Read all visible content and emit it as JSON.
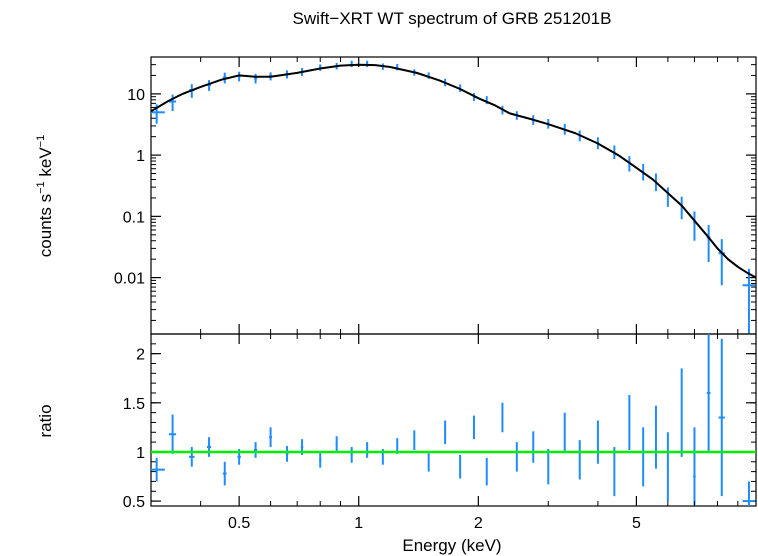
{
  "chart_data": [
    {
      "panel": "spectrum",
      "type": "scatter",
      "title": "Swift−XRT WT spectrum of GRB 251201B",
      "ylabel_parts": [
        "counts s",
        "−1",
        " keV",
        "−1"
      ],
      "xscale": "log",
      "yscale": "log",
      "xlim": [
        0.3,
        10
      ],
      "ylim": [
        0.0012,
        40
      ],
      "ytick_values": [
        10,
        1,
        0.1,
        0.01
      ],
      "ytick_labels": [
        "10",
        "1",
        "0.1",
        "0.01"
      ],
      "data_color": "#1e8cff",
      "model_color": "#000000",
      "model": {
        "x": [
          0.3,
          0.33,
          0.36,
          0.4,
          0.45,
          0.5,
          0.55,
          0.6,
          0.7,
          0.8,
          0.9,
          1.0,
          1.1,
          1.2,
          1.4,
          1.6,
          1.8,
          2.0,
          2.2,
          2.4,
          2.7,
          3.0,
          3.5,
          4.0,
          4.5,
          5.0,
          5.5,
          6.0,
          6.5,
          7.0,
          7.5,
          8.0,
          8.5,
          9.0,
          9.5,
          10.0
        ],
        "y": [
          5.2,
          7.5,
          10.0,
          13.0,
          17.0,
          20.0,
          19.0,
          19.0,
          22.0,
          26.0,
          29.0,
          30.0,
          29.5,
          27.5,
          22.0,
          16.5,
          12.0,
          8.5,
          6.5,
          4.8,
          3.9,
          3.2,
          2.3,
          1.55,
          1.0,
          0.62,
          0.4,
          0.24,
          0.15,
          0.085,
          0.05,
          0.03,
          0.02,
          0.015,
          0.012,
          0.01
        ]
      },
      "data_points": [
        {
          "x": 0.31,
          "y": 5.0,
          "xerr": 0.015,
          "yerr_frac": 0.35
        },
        {
          "x": 0.34,
          "y": 7.5,
          "xerr": 0.007,
          "yerr_frac": 0.3
        },
        {
          "x": 0.38,
          "y": 11.5,
          "xerr": 0.006,
          "yerr_frac": 0.25
        },
        {
          "x": 0.42,
          "y": 14.0,
          "xerr": 0.005,
          "yerr_frac": 0.2
        },
        {
          "x": 0.46,
          "y": 18.5,
          "xerr": 0.005,
          "yerr_frac": 0.2
        },
        {
          "x": 0.5,
          "y": 19.5,
          "xerr": 0.005,
          "yerr_frac": 0.18
        },
        {
          "x": 0.55,
          "y": 18.0,
          "xerr": 0.005,
          "yerr_frac": 0.18
        },
        {
          "x": 0.6,
          "y": 19.5,
          "xerr": 0.005,
          "yerr_frac": 0.15
        },
        {
          "x": 0.66,
          "y": 21.0,
          "xerr": 0.005,
          "yerr_frac": 0.15
        },
        {
          "x": 0.72,
          "y": 23.0,
          "xerr": 0.005,
          "yerr_frac": 0.15
        },
        {
          "x": 0.8,
          "y": 27.0,
          "xerr": 0.005,
          "yerr_frac": 0.12
        },
        {
          "x": 0.88,
          "y": 28.5,
          "xerr": 0.005,
          "yerr_frac": 0.12
        },
        {
          "x": 0.96,
          "y": 31.0,
          "xerr": 0.005,
          "yerr_frac": 0.12
        },
        {
          "x": 1.05,
          "y": 31.0,
          "xerr": 0.005,
          "yerr_frac": 0.12
        },
        {
          "x": 1.15,
          "y": 28.0,
          "xerr": 0.005,
          "yerr_frac": 0.12
        },
        {
          "x": 1.25,
          "y": 27.5,
          "xerr": 0.005,
          "yerr_frac": 0.12
        },
        {
          "x": 1.38,
          "y": 22.5,
          "xerr": 0.006,
          "yerr_frac": 0.12
        },
        {
          "x": 1.5,
          "y": 20.0,
          "xerr": 0.006,
          "yerr_frac": 0.12
        },
        {
          "x": 1.65,
          "y": 15.5,
          "xerr": 0.007,
          "yerr_frac": 0.14
        },
        {
          "x": 1.8,
          "y": 12.5,
          "xerr": 0.008,
          "yerr_frac": 0.14
        },
        {
          "x": 1.95,
          "y": 9.0,
          "xerr": 0.008,
          "yerr_frac": 0.15
        },
        {
          "x": 2.1,
          "y": 8.0,
          "xerr": 0.008,
          "yerr_frac": 0.15
        },
        {
          "x": 2.3,
          "y": 5.5,
          "xerr": 0.009,
          "yerr_frac": 0.16
        },
        {
          "x": 2.5,
          "y": 4.5,
          "xerr": 0.01,
          "yerr_frac": 0.16
        },
        {
          "x": 2.75,
          "y": 3.8,
          "xerr": 0.011,
          "yerr_frac": 0.18
        },
        {
          "x": 3.0,
          "y": 3.3,
          "xerr": 0.012,
          "yerr_frac": 0.18
        },
        {
          "x": 3.3,
          "y": 2.7,
          "xerr": 0.013,
          "yerr_frac": 0.2
        },
        {
          "x": 3.6,
          "y": 2.1,
          "xerr": 0.014,
          "yerr_frac": 0.2
        },
        {
          "x": 4.0,
          "y": 1.6,
          "xerr": 0.016,
          "yerr_frac": 0.22
        },
        {
          "x": 4.4,
          "y": 1.15,
          "xerr": 0.017,
          "yerr_frac": 0.25
        },
        {
          "x": 4.8,
          "y": 0.75,
          "xerr": 0.019,
          "yerr_frac": 0.28
        },
        {
          "x": 5.2,
          "y": 0.55,
          "xerr": 0.02,
          "yerr_frac": 0.3
        },
        {
          "x": 5.6,
          "y": 0.38,
          "xerr": 0.022,
          "yerr_frac": 0.32
        },
        {
          "x": 6.0,
          "y": 0.22,
          "xerr": 0.024,
          "yerr_frac": 0.35
        },
        {
          "x": 6.5,
          "y": 0.15,
          "xerr": 0.026,
          "yerr_frac": 0.4
        },
        {
          "x": 7.0,
          "y": 0.08,
          "xerr": 0.05,
          "yerr_frac": 0.5
        },
        {
          "x": 7.6,
          "y": 0.045,
          "xerr": 0.08,
          "yerr_frac": 0.6
        },
        {
          "x": 8.2,
          "y": 0.025,
          "xerr": 0.15,
          "yerr_frac": 0.7
        },
        {
          "x": 9.6,
          "y": 0.0075,
          "xerr": 0.35,
          "yerr_frac": 0.85
        }
      ]
    },
    {
      "panel": "ratio",
      "type": "scatter",
      "ylabel": "ratio",
      "xlabel": "Energy (keV)",
      "xscale": "log",
      "xlim": [
        0.3,
        10
      ],
      "ylim": [
        0.45,
        2.2
      ],
      "xtick_values": [
        0.5,
        1,
        2,
        5
      ],
      "xtick_labels": [
        "0.5",
        "1",
        "2",
        "5"
      ],
      "ytick_values": [
        0.5,
        1,
        1.5,
        2
      ],
      "ytick_labels": [
        "0.5",
        "1",
        "1.5",
        "2"
      ],
      "reference_line": 1,
      "reference_color": "#00ee00",
      "data_color": "#1e8cff",
      "data_points": [
        {
          "x": 0.31,
          "y": 0.82,
          "yerr": 0.12
        },
        {
          "x": 0.34,
          "y": 1.18,
          "yerr": 0.2
        },
        {
          "x": 0.38,
          "y": 0.95,
          "yerr": 0.1
        },
        {
          "x": 0.42,
          "y": 1.05,
          "yerr": 0.1
        },
        {
          "x": 0.46,
          "y": 0.78,
          "yerr": 0.12
        },
        {
          "x": 0.5,
          "y": 0.95,
          "yerr": 0.08
        },
        {
          "x": 0.55,
          "y": 1.02,
          "yerr": 0.08
        },
        {
          "x": 0.6,
          "y": 1.15,
          "yerr": 0.1
        },
        {
          "x": 0.66,
          "y": 0.98,
          "yerr": 0.08
        },
        {
          "x": 0.72,
          "y": 1.05,
          "yerr": 0.08
        },
        {
          "x": 0.8,
          "y": 0.92,
          "yerr": 0.08
        },
        {
          "x": 0.88,
          "y": 1.08,
          "yerr": 0.08
        },
        {
          "x": 0.96,
          "y": 0.97,
          "yerr": 0.08
        },
        {
          "x": 1.05,
          "y": 1.02,
          "yerr": 0.08
        },
        {
          "x": 1.15,
          "y": 0.95,
          "yerr": 0.08
        },
        {
          "x": 1.25,
          "y": 1.06,
          "yerr": 0.08
        },
        {
          "x": 1.38,
          "y": 1.12,
          "yerr": 0.1
        },
        {
          "x": 1.5,
          "y": 0.9,
          "yerr": 0.1
        },
        {
          "x": 1.65,
          "y": 1.2,
          "yerr": 0.12
        },
        {
          "x": 1.8,
          "y": 0.85,
          "yerr": 0.12
        },
        {
          "x": 1.95,
          "y": 1.25,
          "yerr": 0.12
        },
        {
          "x": 2.1,
          "y": 0.8,
          "yerr": 0.14
        },
        {
          "x": 2.3,
          "y": 1.35,
          "yerr": 0.15
        },
        {
          "x": 2.5,
          "y": 0.95,
          "yerr": 0.15
        },
        {
          "x": 2.75,
          "y": 1.05,
          "yerr": 0.16
        },
        {
          "x": 3.0,
          "y": 0.85,
          "yerr": 0.18
        },
        {
          "x": 3.3,
          "y": 1.2,
          "yerr": 0.2
        },
        {
          "x": 3.6,
          "y": 0.92,
          "yerr": 0.2
        },
        {
          "x": 4.0,
          "y": 1.1,
          "yerr": 0.22
        },
        {
          "x": 4.4,
          "y": 0.8,
          "yerr": 0.25
        },
        {
          "x": 4.8,
          "y": 1.3,
          "yerr": 0.28
        },
        {
          "x": 5.2,
          "y": 0.95,
          "yerr": 0.3
        },
        {
          "x": 5.6,
          "y": 1.15,
          "yerr": 0.32
        },
        {
          "x": 6.0,
          "y": 0.85,
          "yerr": 0.35
        },
        {
          "x": 6.5,
          "y": 1.4,
          "yerr": 0.45
        },
        {
          "x": 7.0,
          "y": 0.75,
          "yerr": 0.5
        },
        {
          "x": 7.6,
          "y": 1.6,
          "yerr": 0.6
        },
        {
          "x": 8.2,
          "y": 1.35,
          "yerr": 0.8
        },
        {
          "x": 9.6,
          "y": 0.5,
          "yerr": 0.2
        }
      ]
    }
  ]
}
